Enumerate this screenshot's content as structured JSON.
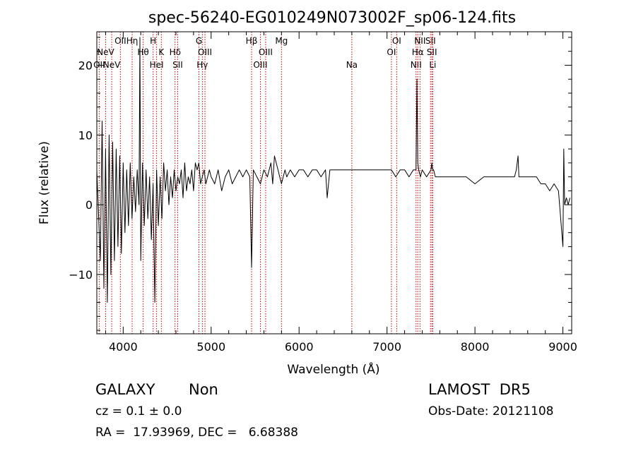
{
  "chart_data": {
    "type": "line",
    "title": "spec-56240-EG010249N073002F_sp06-124.fits",
    "xlabel": "Wavelength (Å)",
    "ylabel": "Flux (relative)",
    "xlim": [
      3700,
      9100
    ],
    "ylim": [
      -18.5,
      24.8
    ],
    "x_ticks": [
      4000,
      5000,
      6000,
      7000,
      8000,
      9000
    ],
    "x_tick_labels": [
      "4000",
      "5000",
      "6000",
      "7000",
      "8000",
      "9000"
    ],
    "y_ticks": [
      -10,
      0,
      10,
      20
    ],
    "y_tick_labels": [
      "−10",
      "0",
      "10",
      "20"
    ],
    "grid": false,
    "line_color": "#000000",
    "marker_color": "#cc0000",
    "series": [
      {
        "x": [
          3700,
          3740,
          3760,
          3780,
          3800,
          3820,
          3840,
          3860,
          3880,
          3900,
          3920,
          3940,
          3960,
          3980,
          4000,
          4020,
          4040,
          4060,
          4080,
          4100,
          4120,
          4140,
          4160,
          4180,
          4190,
          4200,
          4220,
          4240,
          4260,
          4280,
          4300,
          4320,
          4340,
          4360,
          4380,
          4400,
          4420,
          4440,
          4460,
          4480,
          4500,
          4520,
          4540,
          4560,
          4580,
          4600,
          4620,
          4640,
          4660,
          4680,
          4700,
          4720,
          4740,
          4760,
          4780,
          4800,
          4820,
          4840,
          4860,
          4880,
          4900,
          4920,
          4940,
          4960,
          4980,
          5000,
          5040,
          5080,
          5120,
          5160,
          5200,
          5240,
          5280,
          5320,
          5360,
          5400,
          5440,
          5460,
          5480,
          5520,
          5560,
          5600,
          5640,
          5680,
          5700,
          5720,
          5760,
          5800,
          5840,
          5860,
          5900,
          5950,
          6000,
          6050,
          6100,
          6150,
          6200,
          6250,
          6300,
          6320,
          6350,
          6400,
          6500,
          6600,
          6700,
          6800,
          6900,
          7000,
          7050,
          7100,
          7150,
          7200,
          7250,
          7300,
          7330,
          7340,
          7350,
          7360,
          7380,
          7400,
          7450,
          7500,
          7510,
          7520,
          7530,
          7550,
          7600,
          7650,
          7700,
          7800,
          7900,
          8000,
          8100,
          8200,
          8300,
          8400,
          8450,
          8470,
          8490,
          8500,
          8520,
          8550,
          8600,
          8650,
          8700,
          8750,
          8800,
          8850,
          8900,
          8950,
          9000,
          9010,
          9020,
          9040,
          9060,
          9080
        ],
        "y": [
          5,
          -8,
          12,
          -12,
          8,
          -14,
          10,
          -10,
          9,
          -8,
          8,
          -6,
          7,
          -7,
          6,
          -4,
          5,
          -3,
          6,
          -2,
          4,
          -1,
          5,
          0,
          24,
          -8,
          6,
          -3,
          5,
          -2,
          4,
          -5,
          3,
          -14,
          5,
          -3,
          4,
          -2,
          6,
          2,
          5,
          0,
          4,
          1,
          5,
          2,
          4,
          3,
          5,
          1,
          6,
          2,
          4,
          3,
          5,
          2,
          6,
          5,
          6,
          3,
          4,
          5,
          3,
          4,
          5,
          4,
          3,
          5,
          2,
          4,
          5,
          3,
          4,
          5,
          4,
          5,
          4,
          -9,
          5,
          4,
          3,
          5,
          4,
          6,
          3,
          7,
          5,
          3,
          5,
          4,
          5,
          4,
          5,
          5,
          4,
          5,
          5,
          4,
          5,
          1,
          5,
          5,
          5,
          5,
          5,
          5,
          5,
          5,
          5,
          4,
          5,
          5,
          4,
          5,
          5,
          18,
          6,
          5,
          4,
          5,
          4,
          5,
          6,
          5,
          5,
          4,
          4,
          4,
          4,
          4,
          4,
          3,
          4,
          4,
          4,
          4,
          4,
          5,
          7,
          4,
          4,
          4,
          4,
          4,
          4,
          3,
          3,
          2,
          3,
          2,
          -6,
          8,
          0,
          1,
          0,
          1
        ]
      }
    ],
    "markers": [
      {
        "x": 3727,
        "label": "OII",
        "row": 3
      },
      {
        "x": 3800,
        "label": "NeV",
        "row": 2
      },
      {
        "x": 3869,
        "label": "NeV",
        "row": 3
      },
      {
        "x": 3968,
        "label": "OII",
        "row": 1
      },
      {
        "x": 4102,
        "label": "Hη",
        "row": 1
      },
      {
        "x": 4227,
        "label": "Hθ",
        "row": 2
      },
      {
        "x": 4340,
        "label": "H",
        "row": 1
      },
      {
        "x": 4380,
        "label": "HeI",
        "row": 3
      },
      {
        "x": 4434,
        "label": "K",
        "row": 2
      },
      {
        "x": 4590,
        "label": "Hδ",
        "row": 2
      },
      {
        "x": 4620,
        "label": "SII",
        "row": 3
      },
      {
        "x": 4861,
        "label": "G",
        "row": 1
      },
      {
        "x": 4900,
        "label": "Hγ",
        "row": 3
      },
      {
        "x": 4930,
        "label": "OIII",
        "row": 2
      },
      {
        "x": 5460,
        "label": "Hβ",
        "row": 1
      },
      {
        "x": 5560,
        "label": "OIII",
        "row": 3
      },
      {
        "x": 5620,
        "label": "OIII",
        "row": 2
      },
      {
        "x": 5800,
        "label": "Mg",
        "row": 1
      },
      {
        "x": 6600,
        "label": "Na",
        "row": 3
      },
      {
        "x": 7050,
        "label": "OI",
        "row": 2
      },
      {
        "x": 7110,
        "label": "OI",
        "row": 1
      },
      {
        "x": 7330,
        "label": "NII",
        "row": 3
      },
      {
        "x": 7350,
        "label": "Hα",
        "row": 2
      },
      {
        "x": 7375,
        "label": "NII",
        "row": 1
      },
      {
        "x": 7495,
        "label": "SII",
        "row": 1
      },
      {
        "x": 7510,
        "label": "SII",
        "row": 2
      },
      {
        "x": 7520,
        "label": "Li",
        "row": 3
      }
    ]
  },
  "info": {
    "object_class": "GALAXY",
    "subclass": "Non",
    "survey": "LAMOST  DR5",
    "redshift": "cz = 0.1 ± 0.0",
    "obs_date": "Obs-Date: 20121108",
    "coords": "RA =  17.93969, DEC =   6.68388"
  }
}
